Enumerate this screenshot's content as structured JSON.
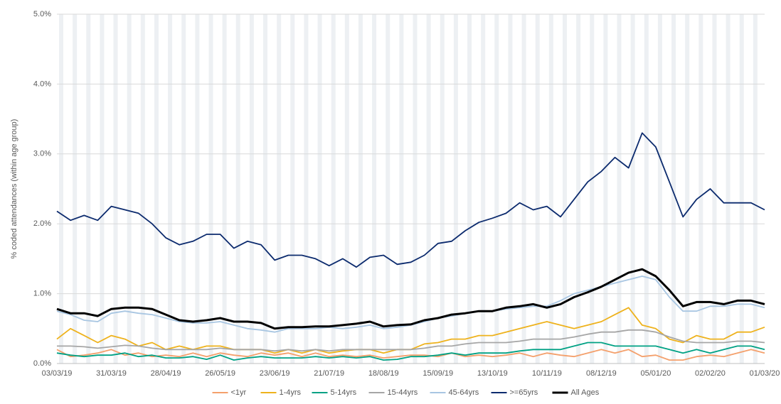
{
  "chart_data": {
    "type": "line",
    "y_label": "% coded attendances (within age group)",
    "x": [
      "03/03/19",
      "10/03/19",
      "17/03/19",
      "24/03/19",
      "31/03/19",
      "07/04/19",
      "14/04/19",
      "21/04/19",
      "28/04/19",
      "05/05/19",
      "12/05/19",
      "19/05/19",
      "26/05/19",
      "02/06/19",
      "09/06/19",
      "16/06/19",
      "23/06/19",
      "30/06/19",
      "07/07/19",
      "14/07/19",
      "21/07/19",
      "28/07/19",
      "04/08/19",
      "11/08/19",
      "18/08/19",
      "25/08/19",
      "01/09/19",
      "08/09/19",
      "15/09/19",
      "22/09/19",
      "29/09/19",
      "06/10/19",
      "13/10/19",
      "20/10/19",
      "27/10/19",
      "03/11/19",
      "10/11/19",
      "17/11/19",
      "24/11/19",
      "01/12/19",
      "08/12/19",
      "15/12/19",
      "22/12/19",
      "29/12/19",
      "05/01/20",
      "12/01/20",
      "19/01/20",
      "26/01/20",
      "02/02/20",
      "09/02/20",
      "16/02/20",
      "23/02/20",
      "01/03/20"
    ],
    "xlim": [
      "03/03/19",
      "01/03/20"
    ],
    "xticks": [
      "03/03/19",
      "31/03/19",
      "28/04/19",
      "26/05/19",
      "23/06/19",
      "21/07/19",
      "18/08/19",
      "15/09/19",
      "13/10/19",
      "10/11/19",
      "08/12/19",
      "05/01/20",
      "02/02/20",
      "01/03/20"
    ],
    "ylim": [
      0,
      5
    ],
    "yticks": [
      {
        "value": 0,
        "label": "0.0%"
      },
      {
        "value": 1,
        "label": "1.0%"
      },
      {
        "value": 2,
        "label": "2.0%"
      },
      {
        "value": 3,
        "label": "3.0%"
      },
      {
        "value": 4,
        "label": "4.0%"
      },
      {
        "value": 5,
        "label": "5.0%"
      }
    ],
    "grid": true,
    "legend": "bottom",
    "series": [
      {
        "name": "<1yr",
        "color": "#f4a06c",
        "values": [
          0.2,
          0.1,
          0.12,
          0.15,
          0.2,
          0.12,
          0.15,
          0.1,
          0.12,
          0.1,
          0.15,
          0.1,
          0.15,
          0.12,
          0.1,
          0.15,
          0.12,
          0.15,
          0.1,
          0.15,
          0.1,
          0.12,
          0.1,
          0.12,
          0.08,
          0.1,
          0.12,
          0.12,
          0.1,
          0.15,
          0.1,
          0.12,
          0.1,
          0.12,
          0.15,
          0.1,
          0.15,
          0.12,
          0.1,
          0.15,
          0.2,
          0.15,
          0.2,
          0.1,
          0.12,
          0.05,
          0.05,
          0.1,
          0.12,
          0.1,
          0.15,
          0.2,
          0.15
        ]
      },
      {
        "name": "1-4yrs",
        "color": "#eeb21c",
        "values": [
          0.35,
          0.5,
          0.4,
          0.3,
          0.4,
          0.35,
          0.25,
          0.3,
          0.2,
          0.25,
          0.2,
          0.25,
          0.25,
          0.2,
          0.2,
          0.2,
          0.15,
          0.2,
          0.15,
          0.2,
          0.15,
          0.18,
          0.2,
          0.2,
          0.15,
          0.2,
          0.2,
          0.28,
          0.3,
          0.35,
          0.35,
          0.4,
          0.4,
          0.45,
          0.5,
          0.55,
          0.6,
          0.55,
          0.5,
          0.55,
          0.6,
          0.7,
          0.8,
          0.55,
          0.5,
          0.35,
          0.3,
          0.4,
          0.35,
          0.35,
          0.45,
          0.45,
          0.52
        ]
      },
      {
        "name": "5-14yrs",
        "color": "#00a184",
        "values": [
          0.15,
          0.12,
          0.1,
          0.12,
          0.12,
          0.15,
          0.1,
          0.12,
          0.08,
          0.08,
          0.1,
          0.06,
          0.12,
          0.05,
          0.08,
          0.1,
          0.08,
          0.08,
          0.08,
          0.1,
          0.08,
          0.1,
          0.08,
          0.1,
          0.05,
          0.06,
          0.1,
          0.1,
          0.12,
          0.15,
          0.12,
          0.15,
          0.15,
          0.15,
          0.18,
          0.2,
          0.2,
          0.2,
          0.25,
          0.3,
          0.3,
          0.25,
          0.25,
          0.25,
          0.25,
          0.2,
          0.15,
          0.2,
          0.15,
          0.2,
          0.25,
          0.25,
          0.2
        ]
      },
      {
        "name": "15-44yrs",
        "color": "#a6a6a6",
        "values": [
          0.25,
          0.25,
          0.24,
          0.22,
          0.24,
          0.26,
          0.25,
          0.22,
          0.2,
          0.2,
          0.2,
          0.2,
          0.22,
          0.2,
          0.2,
          0.2,
          0.18,
          0.2,
          0.18,
          0.2,
          0.18,
          0.2,
          0.2,
          0.2,
          0.2,
          0.2,
          0.2,
          0.22,
          0.25,
          0.25,
          0.28,
          0.3,
          0.3,
          0.3,
          0.32,
          0.35,
          0.35,
          0.35,
          0.38,
          0.42,
          0.45,
          0.45,
          0.48,
          0.48,
          0.45,
          0.38,
          0.32,
          0.3,
          0.3,
          0.3,
          0.32,
          0.32,
          0.3
        ]
      },
      {
        "name": "45-64yrs",
        "color": "#a8c6e2",
        "values": [
          0.75,
          0.7,
          0.62,
          0.6,
          0.72,
          0.75,
          0.72,
          0.7,
          0.65,
          0.6,
          0.58,
          0.58,
          0.6,
          0.55,
          0.5,
          0.48,
          0.45,
          0.5,
          0.5,
          0.5,
          0.52,
          0.5,
          0.52,
          0.55,
          0.5,
          0.52,
          0.55,
          0.6,
          0.65,
          0.68,
          0.72,
          0.75,
          0.75,
          0.78,
          0.8,
          0.82,
          0.82,
          0.9,
          1.0,
          1.05,
          1.1,
          1.15,
          1.2,
          1.25,
          1.2,
          0.95,
          0.75,
          0.75,
          0.82,
          0.82,
          0.85,
          0.85,
          0.8
        ]
      },
      {
        "name": ">=65yrs",
        "color": "#0c2b6e",
        "values": [
          2.18,
          2.05,
          2.12,
          2.05,
          2.25,
          2.2,
          2.15,
          2.0,
          1.8,
          1.7,
          1.75,
          1.85,
          1.85,
          1.65,
          1.75,
          1.7,
          1.48,
          1.55,
          1.55,
          1.5,
          1.4,
          1.5,
          1.38,
          1.52,
          1.55,
          1.42,
          1.45,
          1.55,
          1.72,
          1.75,
          1.9,
          2.02,
          2.08,
          2.15,
          2.3,
          2.2,
          2.25,
          2.1,
          2.35,
          2.6,
          2.75,
          2.95,
          2.8,
          3.3,
          3.1,
          2.6,
          2.1,
          2.35,
          2.5,
          2.3,
          2.3,
          2.3,
          2.2
        ]
      },
      {
        "name": "All Ages",
        "color": "#000000",
        "values": [
          0.78,
          0.72,
          0.72,
          0.68,
          0.78,
          0.8,
          0.8,
          0.78,
          0.7,
          0.62,
          0.6,
          0.62,
          0.65,
          0.6,
          0.6,
          0.58,
          0.5,
          0.52,
          0.52,
          0.53,
          0.53,
          0.55,
          0.57,
          0.6,
          0.53,
          0.55,
          0.56,
          0.62,
          0.65,
          0.7,
          0.72,
          0.75,
          0.75,
          0.8,
          0.82,
          0.85,
          0.8,
          0.85,
          0.95,
          1.02,
          1.1,
          1.2,
          1.3,
          1.35,
          1.25,
          1.05,
          0.82,
          0.88,
          0.88,
          0.85,
          0.9,
          0.9,
          0.85
        ]
      }
    ]
  }
}
